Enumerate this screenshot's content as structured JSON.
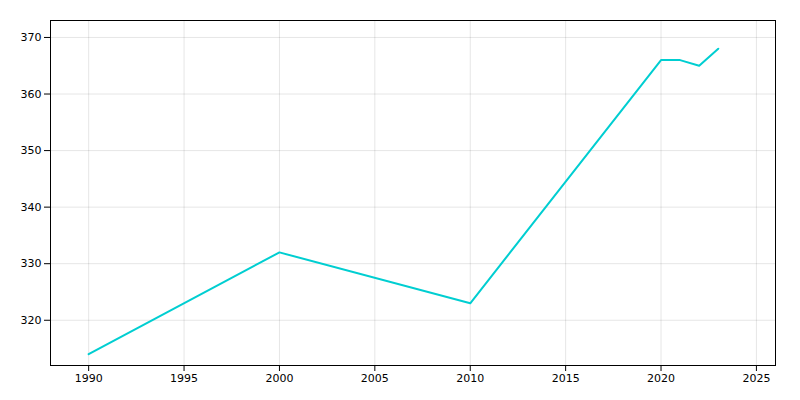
{
  "chart_data": {
    "type": "line",
    "x": [
      1990,
      2000,
      2010,
      2020,
      2021,
      2022,
      2023
    ],
    "values": [
      314,
      332,
      323,
      366,
      366,
      365,
      368
    ],
    "color": "#00CED1",
    "xlim": [
      1988,
      2026
    ],
    "ylim": [
      312,
      373
    ],
    "xticks": [
      1990,
      1995,
      2000,
      2005,
      2010,
      2015,
      2020,
      2025
    ],
    "yticks": [
      320,
      330,
      340,
      350,
      360,
      370
    ],
    "grid": true
  }
}
